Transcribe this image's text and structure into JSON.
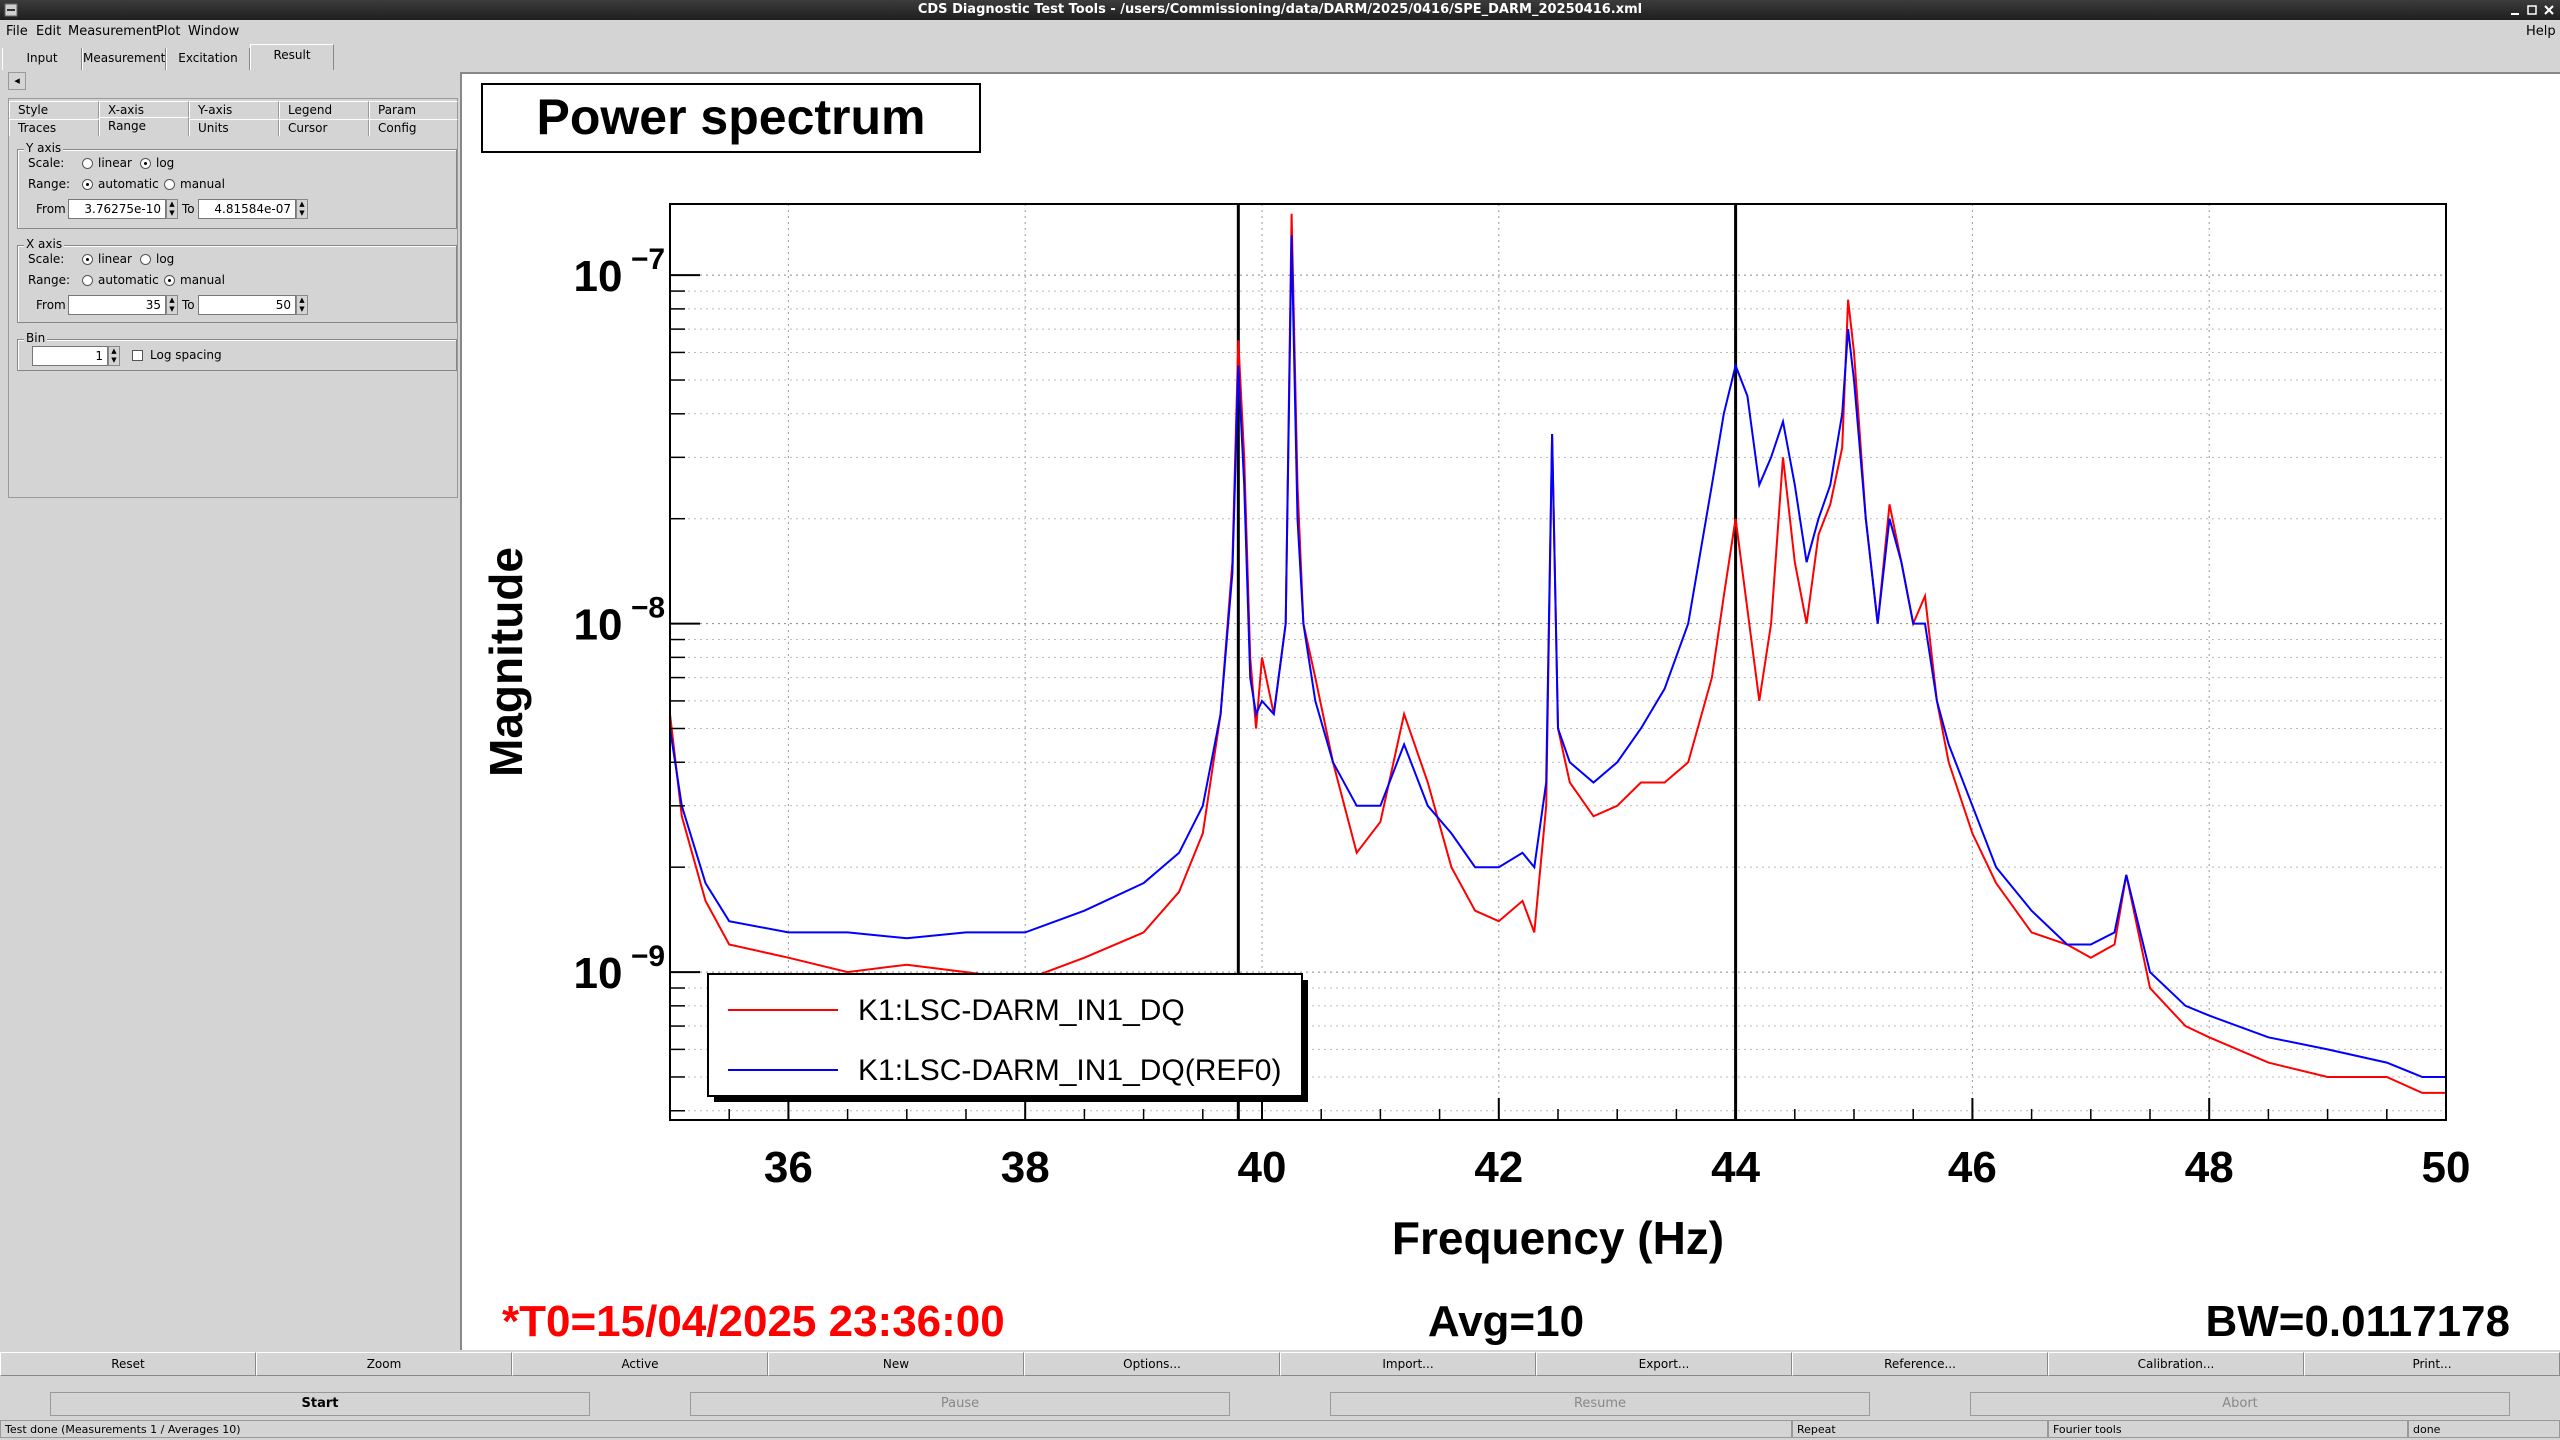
{
  "window": {
    "title": "CDS Diagnostic Test Tools - /users/Commissioning/data/DARM/2025/0416/SPE_DARM_20250416.xml"
  },
  "menu": [
    "File",
    "Edit",
    "Measurement",
    "Plot",
    "Window"
  ],
  "menu_help": "Help",
  "main_tabs": [
    "Input",
    "Measurement",
    "Excitation",
    "Result"
  ],
  "options": {
    "collapse_glyph": "◂",
    "tabs_row1": [
      "Style",
      "X-axis",
      "Y-axis",
      "Legend",
      "Param"
    ],
    "tabs_row2": [
      "Traces",
      "Range",
      "Units",
      "Cursor",
      "Config"
    ],
    "yaxis": {
      "title": "Y axis",
      "scale_label": "Scale:",
      "scale_linear": "linear",
      "scale_log": "log",
      "scale_selected": "log",
      "range_label": "Range:",
      "range_automatic": "automatic",
      "range_manual": "manual",
      "range_selected": "automatic",
      "from_label": "From",
      "from_value": "3.76275e-10",
      "to_label": "To",
      "to_value": "4.81584e-07"
    },
    "xaxis": {
      "title": "X axis",
      "scale_label": "Scale:",
      "scale_linear": "linear",
      "scale_log": "log",
      "scale_selected": "linear",
      "range_label": "Range:",
      "range_automatic": "automatic",
      "range_manual": "manual",
      "range_selected": "manual",
      "from_label": "From",
      "from_value": "35",
      "to_label": "To",
      "to_value": "50"
    },
    "bin": {
      "title": "Bin",
      "value": "1",
      "log_spacing_label": "Log spacing",
      "log_spacing": false
    }
  },
  "plot": {
    "title": "Power spectrum",
    "xlabel": "Frequency (Hz)",
    "ylabel": "Magnitude",
    "t0": "*T0=15/04/2025 23:36:00",
    "avg": "Avg=10",
    "bw": "BW=0.0117178"
  },
  "chart_data": {
    "type": "line",
    "title": "Power spectrum",
    "xlabel": "Frequency (Hz)",
    "ylabel": "Magnitude",
    "xlim": [
      35,
      50
    ],
    "ylim": [
      3.76275e-10,
      1.6e-07
    ],
    "yscale": "log",
    "grid": true,
    "legend_position": "bottom-left",
    "x_ticks": [
      36,
      38,
      40,
      42,
      44,
      46,
      48,
      50
    ],
    "y_ticks": [
      {
        "value": 1e-09,
        "base": "10",
        "exp": "−9"
      },
      {
        "value": 1e-08,
        "base": "10",
        "exp": "−8"
      },
      {
        "value": 1e-07,
        "base": "10",
        "exp": "−7"
      }
    ],
    "cursors_x": [
      39.8,
      44.0
    ],
    "series": [
      {
        "name": "K1:LSC-DARM_IN1_DQ",
        "color": "#ff0000",
        "x": [
          35.0,
          35.1,
          35.3,
          35.5,
          36.0,
          36.5,
          37.0,
          37.5,
          38.0,
          38.5,
          39.0,
          39.3,
          39.5,
          39.65,
          39.75,
          39.8,
          39.85,
          39.9,
          39.95,
          40.0,
          40.1,
          40.2,
          40.25,
          40.3,
          40.35,
          40.45,
          40.6,
          40.8,
          41.0,
          41.2,
          41.4,
          41.6,
          41.8,
          42.0,
          42.2,
          42.3,
          42.4,
          42.45,
          42.5,
          42.6,
          42.8,
          43.0,
          43.2,
          43.4,
          43.6,
          43.8,
          43.9,
          44.0,
          44.1,
          44.2,
          44.3,
          44.4,
          44.5,
          44.6,
          44.7,
          44.8,
          44.9,
          44.95,
          45.0,
          45.1,
          45.2,
          45.3,
          45.4,
          45.5,
          45.6,
          45.7,
          45.8,
          46.0,
          46.2,
          46.5,
          46.8,
          47.0,
          47.2,
          47.3,
          47.5,
          47.8,
          48.0,
          48.5,
          49.0,
          49.5,
          49.8,
          50.0
        ],
        "y": [
          5.5e-09,
          2.8e-09,
          1.6e-09,
          1.2e-09,
          1.1e-09,
          1e-09,
          1.05e-09,
          1e-09,
          9.5e-10,
          1.1e-09,
          1.3e-09,
          1.7e-09,
          2.5e-09,
          5.5e-09,
          1.5e-08,
          6.5e-08,
          3e-08,
          8e-09,
          5e-09,
          8e-09,
          5.5e-09,
          1e-08,
          1.5e-07,
          2.5e-08,
          1e-08,
          7e-09,
          4e-09,
          2.2e-09,
          2.7e-09,
          5.5e-09,
          3.5e-09,
          2e-09,
          1.5e-09,
          1.4e-09,
          1.6e-09,
          1.3e-09,
          3e-09,
          3.5e-08,
          5e-09,
          3.5e-09,
          2.8e-09,
          3e-09,
          3.5e-09,
          3.5e-09,
          4e-09,
          7e-09,
          1.2e-08,
          2e-08,
          1.1e-08,
          6e-09,
          1e-08,
          3e-08,
          1.5e-08,
          1e-08,
          1.8e-08,
          2.2e-08,
          3.2e-08,
          8.5e-08,
          6e-08,
          2e-08,
          1e-08,
          2.2e-08,
          1.5e-08,
          1e-08,
          1.2e-08,
          6e-09,
          4e-09,
          2.5e-09,
          1.8e-09,
          1.3e-09,
          1.2e-09,
          1.1e-09,
          1.2e-09,
          1.9e-09,
          9e-10,
          7e-10,
          6.5e-10,
          5.5e-10,
          5e-10,
          5e-10,
          4.5e-10,
          4.5e-10
        ]
      },
      {
        "name": "K1:LSC-DARM_IN1_DQ(REF0)",
        "color": "#0000ff",
        "x": [
          35.0,
          35.1,
          35.3,
          35.5,
          36.0,
          36.5,
          37.0,
          37.5,
          38.0,
          38.5,
          39.0,
          39.3,
          39.5,
          39.65,
          39.75,
          39.8,
          39.85,
          39.9,
          39.95,
          40.0,
          40.1,
          40.2,
          40.25,
          40.3,
          40.35,
          40.45,
          40.6,
          40.8,
          41.0,
          41.2,
          41.4,
          41.6,
          41.8,
          42.0,
          42.2,
          42.3,
          42.4,
          42.45,
          42.5,
          42.6,
          42.8,
          43.0,
          43.2,
          43.4,
          43.6,
          43.8,
          43.9,
          44.0,
          44.1,
          44.2,
          44.3,
          44.4,
          44.5,
          44.6,
          44.7,
          44.8,
          44.9,
          44.95,
          45.0,
          45.1,
          45.2,
          45.3,
          45.4,
          45.5,
          45.6,
          45.7,
          45.8,
          46.0,
          46.2,
          46.5,
          46.8,
          47.0,
          47.2,
          47.3,
          47.5,
          47.8,
          48.0,
          48.5,
          49.0,
          49.5,
          49.8,
          50.0
        ],
        "y": [
          5e-09,
          3e-09,
          1.8e-09,
          1.4e-09,
          1.3e-09,
          1.3e-09,
          1.25e-09,
          1.3e-09,
          1.3e-09,
          1.5e-09,
          1.8e-09,
          2.2e-09,
          3e-09,
          5.5e-09,
          1.4e-08,
          5.5e-08,
          2.5e-08,
          7e-09,
          5.5e-09,
          6e-09,
          5.5e-09,
          1e-08,
          1.3e-07,
          2e-08,
          1e-08,
          6e-09,
          4e-09,
          3e-09,
          3e-09,
          4.5e-09,
          3e-09,
          2.5e-09,
          2e-09,
          2e-09,
          2.2e-09,
          2e-09,
          3.5e-09,
          3.5e-08,
          5e-09,
          4e-09,
          3.5e-09,
          4e-09,
          5e-09,
          6.5e-09,
          1e-08,
          2.5e-08,
          4e-08,
          5.5e-08,
          4.5e-08,
          2.5e-08,
          3e-08,
          3.8e-08,
          2.5e-08,
          1.5e-08,
          2e-08,
          2.5e-08,
          4e-08,
          7e-08,
          5e-08,
          2e-08,
          1e-08,
          2e-08,
          1.5e-08,
          1e-08,
          1e-08,
          6e-09,
          4.5e-09,
          3e-09,
          2e-09,
          1.5e-09,
          1.2e-09,
          1.2e-09,
          1.3e-09,
          1.9e-09,
          1e-09,
          8e-10,
          7.5e-10,
          6.5e-10,
          6e-10,
          5.5e-10,
          5e-10,
          5e-10
        ]
      }
    ]
  },
  "plot_buttons": [
    "Reset",
    "Zoom",
    "Active",
    "New",
    "Options...",
    "Import...",
    "Export...",
    "Reference...",
    "Calibration...",
    "Print..."
  ],
  "control_buttons": [
    {
      "label": "Start",
      "enabled": true
    },
    {
      "label": "Pause",
      "enabled": false
    },
    {
      "label": "Resume",
      "enabled": false
    },
    {
      "label": "Abort",
      "enabled": false
    }
  ],
  "status": [
    "Test done (Measurements 1 / Averages 10)",
    "Repeat",
    "Fourier tools",
    "done"
  ]
}
